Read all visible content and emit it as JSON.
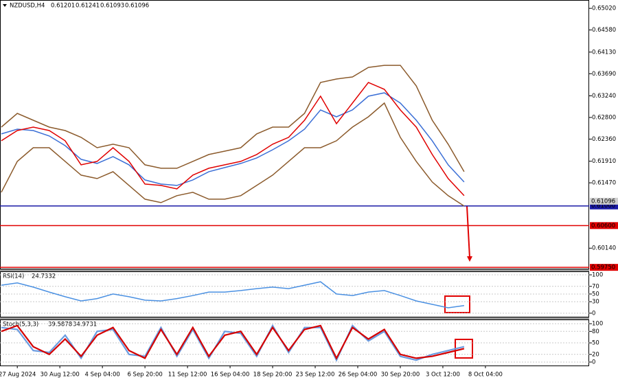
{
  "chart_data": [
    {
      "type": "line",
      "title": "NZDUSD,H4",
      "ohlc": [
        0.61201,
        0.61241,
        0.61093,
        0.61096
      ],
      "x": [
        -6,
        0,
        6,
        12,
        18,
        24,
        30,
        36,
        42,
        48,
        54,
        60,
        66,
        72,
        78,
        84,
        90,
        96,
        102,
        108,
        114,
        120,
        126,
        132,
        138,
        144,
        150,
        156,
        162,
        168
      ],
      "xlim": [
        -6.5,
        215
      ],
      "ylim": [
        0.5971,
        0.6519
      ],
      "yticks": [
        {
          "value": 0.6502,
          "label": "0.65020"
        },
        {
          "value": 0.6458,
          "label": "0.64580"
        },
        {
          "value": 0.6413,
          "label": "0.64130"
        },
        {
          "value": 0.6369,
          "label": "0.63690"
        },
        {
          "value": 0.6324,
          "label": "0.63240"
        },
        {
          "value": 0.628,
          "label": "0.62800"
        },
        {
          "value": 0.6236,
          "label": "0.62360"
        },
        {
          "value": 0.6191,
          "label": "0.61910"
        },
        {
          "value": 0.6147,
          "label": "0.61470"
        },
        {
          "value": 0.6014,
          "label": "0.60140"
        }
      ],
      "levels": [
        {
          "value": 0.61,
          "label": "0.61000",
          "color": "#1a1aa6"
        },
        {
          "value": 0.606,
          "label": "0.60600",
          "color": "#e00000"
        },
        {
          "value": 0.5975,
          "label": "0.59750",
          "color": "#e00000"
        }
      ],
      "series": [
        {
          "color": "#8b5a2b",
          "values": [
            0.62604,
            0.62884,
            0.62744,
            0.62604,
            0.62534,
            0.62395,
            0.62185,
            0.62255,
            0.62185,
            0.61836,
            0.61766,
            0.61766,
            0.61906,
            0.62046,
            0.62115,
            0.62185,
            0.62465,
            0.62604,
            0.62604,
            0.62884,
            0.63512,
            0.63582,
            0.63624,
            0.63819,
            0.63861,
            0.63861,
            0.63442,
            0.62744,
            0.62255,
            0.61696
          ]
        },
        {
          "color": "#8b5a2b",
          "values": [
            0.61277,
            0.61906,
            0.62185,
            0.62185,
            0.61906,
            0.61627,
            0.61557,
            0.61696,
            0.61417,
            0.61138,
            0.61068,
            0.61208,
            0.61277,
            0.61138,
            0.61138,
            0.61208,
            0.61417,
            0.61627,
            0.61906,
            0.62185,
            0.62185,
            0.62325,
            0.62604,
            0.62814,
            0.63093,
            0.62395,
            0.61906,
            0.61487,
            0.61208,
            0.60998
          ]
        },
        {
          "color": "#3b6fd6",
          "values": [
            0.62465,
            0.62562,
            0.62534,
            0.62423,
            0.62227,
            0.61948,
            0.61864,
            0.62004,
            0.61836,
            0.61529,
            0.61445,
            0.61417,
            0.61529,
            0.61696,
            0.6178,
            0.61864,
            0.61976,
            0.62143,
            0.62325,
            0.62562,
            0.62953,
            0.62814,
            0.62953,
            0.63233,
            0.63302,
            0.63093,
            0.62744,
            0.62325,
            0.61836,
            0.61487
          ]
        },
        {
          "color": "#e00000",
          "values": [
            0.62325,
            0.62534,
            0.62604,
            0.62534,
            0.62325,
            0.61836,
            0.61906,
            0.62185,
            0.61906,
            0.61445,
            0.61417,
            0.61347,
            0.61627,
            0.61766,
            0.61836,
            0.61906,
            0.62046,
            0.62255,
            0.62395,
            0.62744,
            0.63233,
            0.62674,
            0.63093,
            0.63512,
            0.63372,
            0.62953,
            0.62604,
            0.62046,
            0.61557,
            0.61208
          ]
        }
      ]
    },
    {
      "type": "line",
      "title": "RSI(14)",
      "value": 24.7332,
      "xlim": [
        -6.5,
        215
      ],
      "ylim": [
        -11,
        109
      ],
      "yticks": [
        100,
        70,
        50,
        30,
        0
      ],
      "series": [
        {
          "color": "#4a90e2",
          "values": [
            73,
            79,
            68,
            55,
            43,
            32,
            38,
            50,
            43,
            34,
            32,
            38,
            46,
            55,
            55,
            59,
            64,
            68,
            64,
            73,
            82,
            50,
            46,
            55,
            59,
            46,
            32,
            23,
            14,
            20
          ]
        }
      ]
    },
    {
      "type": "line",
      "title": "Stoch(5,3,3)",
      "value": [
        39.5878,
        34.9731
      ],
      "xlim": [
        -6.5,
        215
      ],
      "ylim": [
        -9,
        111
      ],
      "yticks": [
        100,
        80,
        50,
        20,
        0
      ],
      "xticks": [
        {
          "value": 0,
          "label": "27 Aug 2024"
        },
        {
          "value": 16,
          "label": "30 Aug 12:00"
        },
        {
          "value": 32,
          "label": "4 Sep 04:00"
        },
        {
          "value": 48,
          "label": "6 Sep 20:00"
        },
        {
          "value": 64,
          "label": "11 Sep 12:00"
        },
        {
          "value": 80,
          "label": "16 Sep 04:00"
        },
        {
          "value": 96,
          "label": "18 Sep 20:00"
        },
        {
          "value": 112,
          "label": "23 Sep 12:00"
        },
        {
          "value": 128,
          "label": "26 Sep 04:00"
        },
        {
          "value": 144,
          "label": "30 Sep 20:00"
        },
        {
          "value": 160,
          "label": "3 Oct 12:00"
        },
        {
          "value": 176,
          "label": "8 Oct 04:00"
        }
      ],
      "series": [
        {
          "color": "#6a9be0",
          "values": [
            90,
            85,
            30,
            25,
            70,
            10,
            80,
            85,
            20,
            15,
            90,
            15,
            85,
            10,
            80,
            75,
            15,
            95,
            25,
            90,
            90,
            5,
            95,
            55,
            80,
            15,
            5,
            20,
            30,
            40
          ]
        },
        {
          "color": "#d40000",
          "values": [
            80,
            95,
            40,
            20,
            60,
            15,
            70,
            90,
            30,
            10,
            85,
            20,
            90,
            15,
            70,
            80,
            20,
            90,
            30,
            85,
            95,
            10,
            90,
            60,
            85,
            20,
            10,
            15,
            25,
            35
          ]
        }
      ]
    }
  ]
}
